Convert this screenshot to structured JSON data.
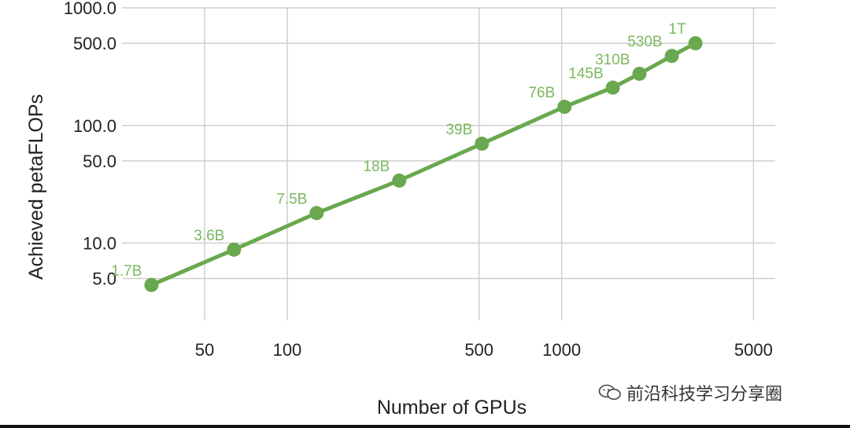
{
  "chart_data": {
    "type": "line",
    "xscale": "log",
    "yscale": "log",
    "xlabel": "Number of GPUs",
    "ylabel": "Achieved petaFLOPs",
    "xlim": [
      25,
      6000
    ],
    "ylim": [
      2.2,
      1000
    ],
    "x_ticks": [
      {
        "value": 50,
        "label": "50"
      },
      {
        "value": 100,
        "label": "100"
      },
      {
        "value": 500,
        "label": "500"
      },
      {
        "value": 1000,
        "label": "1000"
      },
      {
        "value": 5000,
        "label": "5000"
      }
    ],
    "y_ticks": [
      {
        "value": 5,
        "label": "5.0"
      },
      {
        "value": 10,
        "label": "10.0"
      },
      {
        "value": 50,
        "label": "50.0"
      },
      {
        "value": 100,
        "label": "100.0"
      },
      {
        "value": 500,
        "label": "500.0"
      },
      {
        "value": 1000,
        "label": "1000.0"
      }
    ],
    "grid": true,
    "color": "#6aa84f",
    "label_color": "#7cb860",
    "points": [
      {
        "x": 32,
        "y": 4.4,
        "label": "1.7B"
      },
      {
        "x": 64,
        "y": 8.8,
        "label": "3.6B"
      },
      {
        "x": 128,
        "y": 18,
        "label": "7.5B"
      },
      {
        "x": 256,
        "y": 34,
        "label": "18B"
      },
      {
        "x": 512,
        "y": 70,
        "label": "39B"
      },
      {
        "x": 1024,
        "y": 144,
        "label": "76B"
      },
      {
        "x": 1536,
        "y": 210,
        "label": "145B"
      },
      {
        "x": 1920,
        "y": 275,
        "label": "310B"
      },
      {
        "x": 2520,
        "y": 390,
        "label": "530B"
      },
      {
        "x": 3072,
        "y": 500,
        "label": "1T"
      }
    ]
  },
  "watermark": {
    "icon": "wechat-icon",
    "text": "前沿科技学习分享圈"
  }
}
